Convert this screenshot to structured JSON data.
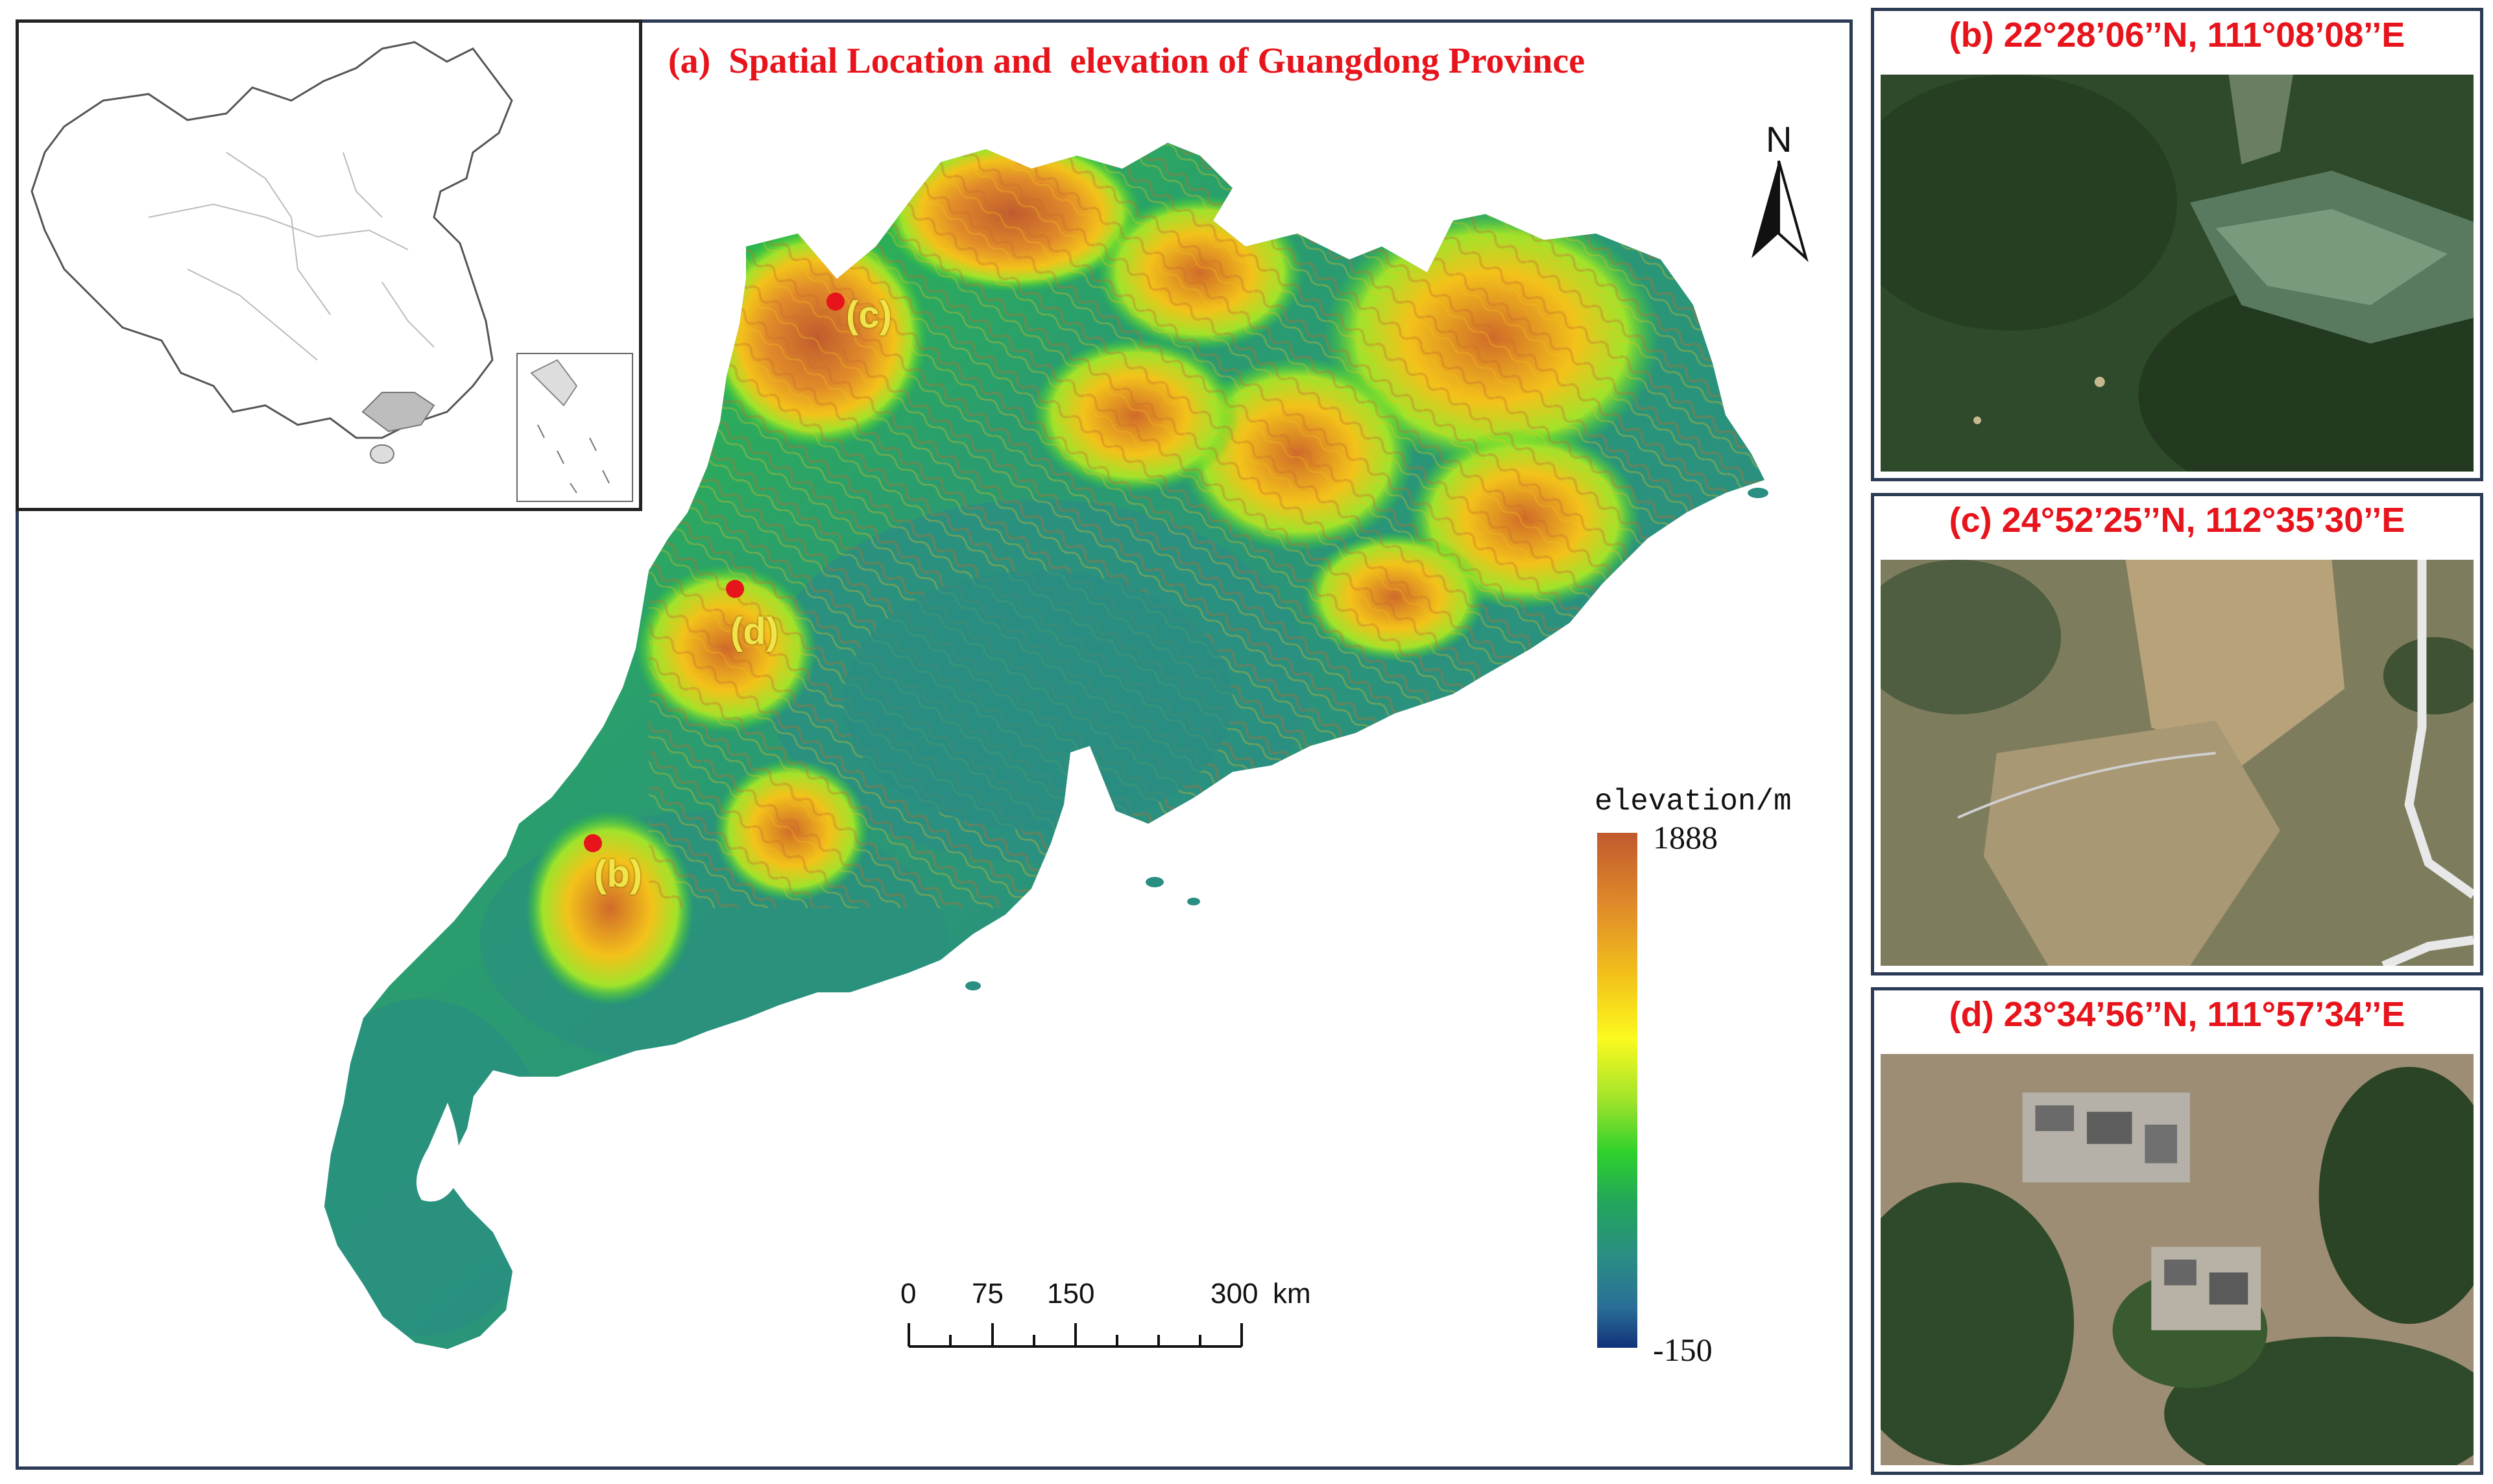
{
  "main_panel": {
    "title": "(a)  Spatial Location and  elevation of Guangdong Province",
    "north_label": "N",
    "legend": {
      "title": "elevation/m",
      "max_label": "1888",
      "min_label": "-150",
      "max_value": 1888,
      "min_value": -150,
      "colors": [
        "#c05a2e",
        "#f3c21a",
        "#fbfa1e",
        "#2fd12c",
        "#2a8e82",
        "#12327a"
      ]
    },
    "scale_bar": {
      "ticks": [
        "0",
        "75",
        "150",
        "300"
      ],
      "unit": "km"
    },
    "points": [
      {
        "label": "(c)",
        "color": "#e8141c"
      },
      {
        "label": "(d)",
        "color": "#e8141c"
      },
      {
        "label": "(b)",
        "color": "#e8141c"
      }
    ]
  },
  "side_panels": [
    {
      "title": "(b) 22°28’06’’N, 111°08’08’’E",
      "scene": "forest-terraced-fields"
    },
    {
      "title": "(c) 24°52’25’’N, 112°35’30’’E",
      "scene": "farmland-road"
    },
    {
      "title": "(d) 23°34’56’’N, 111°57’34’’E",
      "scene": "village-hills"
    }
  ]
}
